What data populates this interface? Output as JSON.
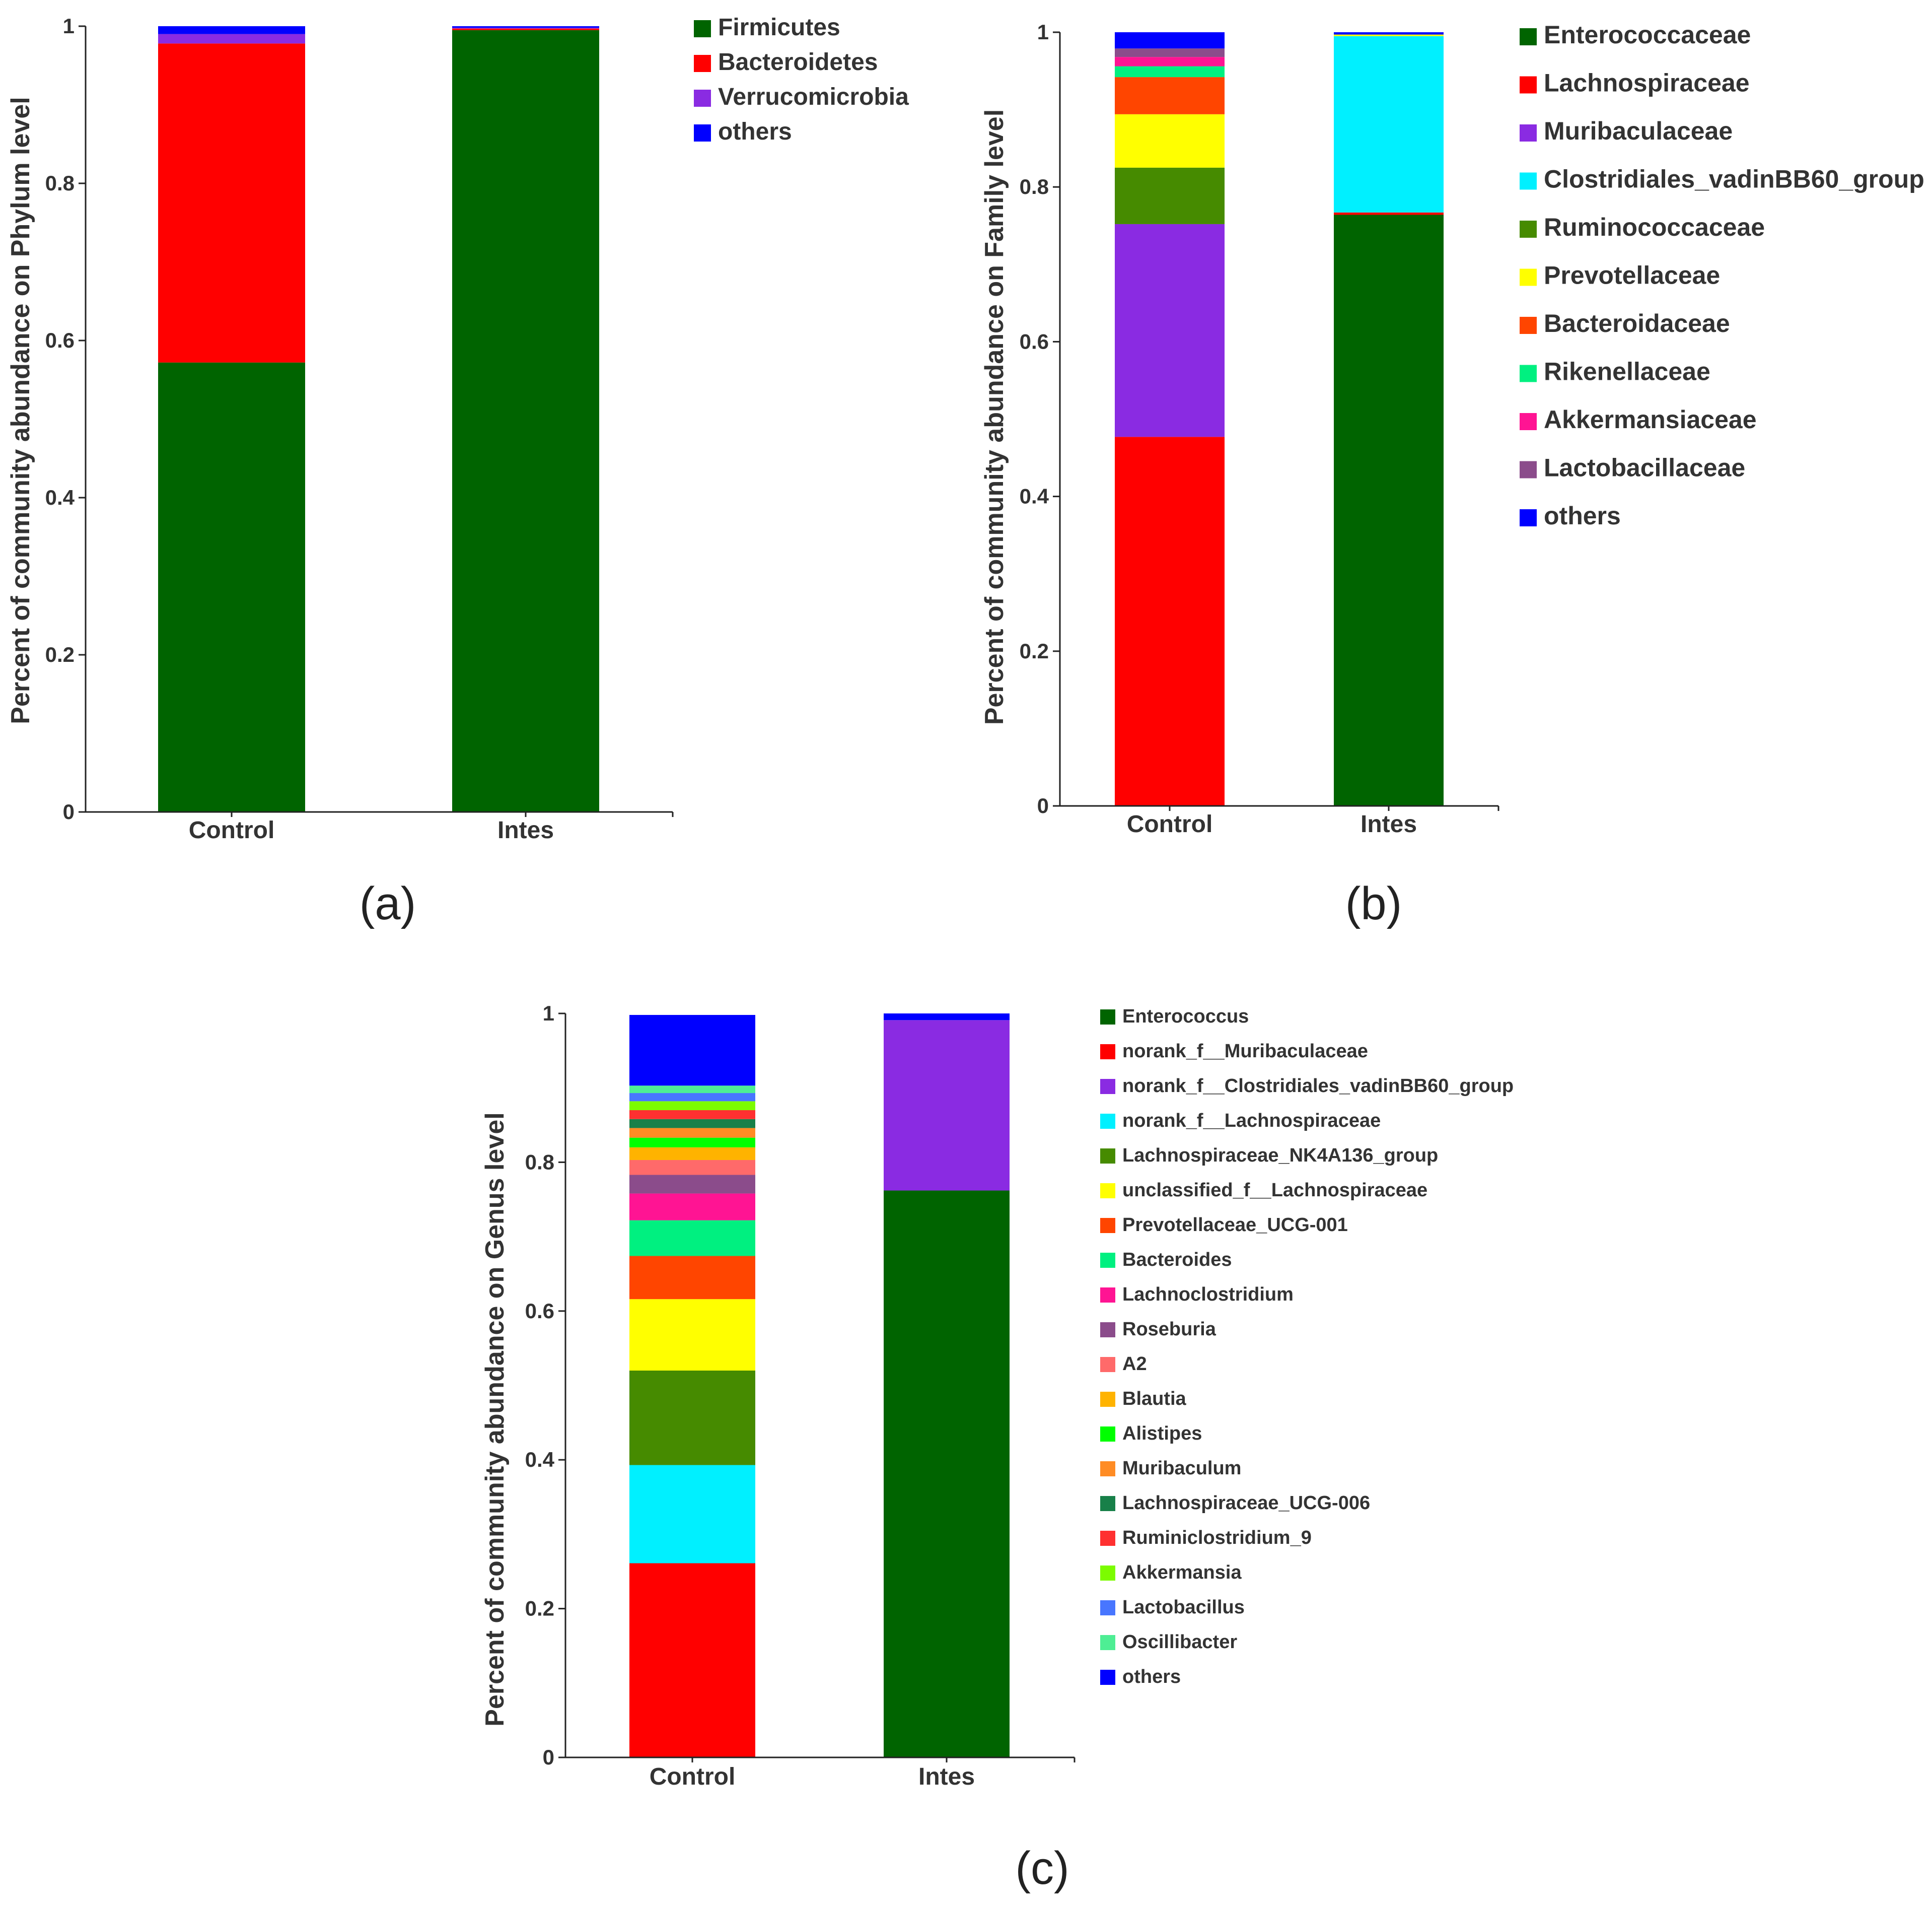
{
  "figure": {
    "panel_labels": [
      "(a)",
      "(b)",
      "(c)"
    ]
  },
  "colors": {
    "dark_green": "#006400",
    "red": "#ff0000",
    "purple": "#8a2be2",
    "blue": "#0000ff",
    "cyan": "#00f0ff",
    "olive_green": "#468b00",
    "yellow": "#ffff00",
    "orange_red": "#ff4500",
    "spring_green": "#00f080",
    "deep_pink": "#ff1493",
    "plum": "#8b4c8b",
    "salmon": "#ff6a6a",
    "orange": "#ffb300",
    "lime": "#00ff00",
    "dark_orange": "#ff8c24",
    "sea_green": "#188049",
    "crimson": "#ff3030",
    "chartreuse": "#7cfc00",
    "royal_blue": "#4876ff",
    "aquamarine": "#4eee94"
  },
  "chart_data": [
    {
      "id": "a",
      "type": "bar",
      "stacked": true,
      "title": "",
      "xlabel": "",
      "ylabel": "Percent of community abundance on Phylum level",
      "ylim": [
        0,
        1
      ],
      "yticks": [
        "0",
        "0.2",
        "0.4",
        "0.6",
        "0.8",
        "1"
      ],
      "categories": [
        "Control",
        "Intes"
      ],
      "legend_position": "right",
      "series": [
        {
          "name": "Firmicutes",
          "color": "#006400",
          "values": [
            0.572,
            0.995
          ]
        },
        {
          "name": "Bacteroidetes",
          "color": "#ff0000",
          "values": [
            0.406,
            0.002
          ]
        },
        {
          "name": "Verrucomicrobia",
          "color": "#8a2be2",
          "values": [
            0.012,
            0.001
          ]
        },
        {
          "name": "others",
          "color": "#0000ff",
          "values": [
            0.01,
            0.002
          ]
        }
      ]
    },
    {
      "id": "b",
      "type": "bar",
      "stacked": true,
      "title": "",
      "xlabel": "",
      "ylabel": "Percent of community abundance on Family level",
      "ylim": [
        0,
        1
      ],
      "yticks": [
        "0",
        "0.2",
        "0.4",
        "0.6",
        "0.8",
        "1"
      ],
      "categories": [
        "Control",
        "Intes"
      ],
      "legend_position": "right",
      "series": [
        {
          "name": "Enterococcaceae",
          "color": "#006400",
          "values": [
            0.0,
            0.764
          ]
        },
        {
          "name": "Lachnospiraceae",
          "color": "#ff0000",
          "values": [
            0.477,
            0.003
          ]
        },
        {
          "name": "Muribaculaceae",
          "color": "#8a2be2",
          "values": [
            0.275,
            0.0
          ]
        },
        {
          "name": "Clostridiales_vadinBB60_group",
          "color": "#00f0ff",
          "values": [
            0.0,
            0.228
          ]
        },
        {
          "name": "Ruminococcaceae",
          "color": "#468b00",
          "values": [
            0.073,
            0.0
          ]
        },
        {
          "name": "Prevotellaceae",
          "color": "#ffff00",
          "values": [
            0.069,
            0.002
          ]
        },
        {
          "name": "Bacteroidaceae",
          "color": "#ff4500",
          "values": [
            0.048,
            0.0
          ]
        },
        {
          "name": "Rikenellaceae",
          "color": "#00f080",
          "values": [
            0.014,
            0.0
          ]
        },
        {
          "name": "Akkermansiaceae",
          "color": "#ff1493",
          "values": [
            0.012,
            0.0
          ]
        },
        {
          "name": "Lactobacillaceae",
          "color": "#8b4c8b",
          "values": [
            0.011,
            0.0
          ]
        },
        {
          "name": "others",
          "color": "#0000ff",
          "values": [
            0.021,
            0.003
          ]
        }
      ]
    },
    {
      "id": "c",
      "type": "bar",
      "stacked": true,
      "title": "",
      "xlabel": "",
      "ylabel": "Percent of community abundance on Genus level",
      "ylim": [
        0,
        1
      ],
      "yticks": [
        "0",
        "0.2",
        "0.4",
        "0.6",
        "0.8",
        "1"
      ],
      "categories": [
        "Control",
        "Intes"
      ],
      "legend_position": "right",
      "series": [
        {
          "name": "Enterococcus",
          "color": "#006400",
          "values": [
            0.0,
            0.762
          ]
        },
        {
          "name": "norank_f__Muribaculaceae",
          "color": "#ff0000",
          "values": [
            0.261,
            0.0
          ]
        },
        {
          "name": "norank_f__Clostridiales_vadinBB60_group",
          "color": "#8a2be2",
          "values": [
            0.0,
            0.229
          ]
        },
        {
          "name": "norank_f__Lachnospiraceae",
          "color": "#00f0ff",
          "values": [
            0.132,
            0.0
          ]
        },
        {
          "name": "Lachnospiraceae_NK4A136_group",
          "color": "#468b00",
          "values": [
            0.127,
            0.0
          ]
        },
        {
          "name": "unclassified_f__Lachnospiraceae",
          "color": "#ffff00",
          "values": [
            0.096,
            0.0
          ]
        },
        {
          "name": "Prevotellaceae_UCG-001",
          "color": "#ff4500",
          "values": [
            0.058,
            0.0
          ]
        },
        {
          "name": "Bacteroides",
          "color": "#00f080",
          "values": [
            0.048,
            0.0
          ]
        },
        {
          "name": "Lachnoclostridium",
          "color": "#ff1493",
          "values": [
            0.036,
            0.0
          ]
        },
        {
          "name": "Roseburia",
          "color": "#8b4c8b",
          "values": [
            0.025,
            0.0
          ]
        },
        {
          "name": "A2",
          "color": "#ff6a6a",
          "values": [
            0.02,
            0.0
          ]
        },
        {
          "name": "Blautia",
          "color": "#ffb300",
          "values": [
            0.017,
            0.0
          ]
        },
        {
          "name": "Alistipes",
          "color": "#00ff00",
          "values": [
            0.013,
            0.0
          ]
        },
        {
          "name": "Muribaculum",
          "color": "#ff8c24",
          "values": [
            0.013,
            0.0
          ]
        },
        {
          "name": "Lachnospiraceae_UCG-006",
          "color": "#188049",
          "values": [
            0.012,
            0.0
          ]
        },
        {
          "name": "Ruminiclostridium_9",
          "color": "#ff3030",
          "values": [
            0.012,
            0.0
          ]
        },
        {
          "name": "Akkermansia",
          "color": "#7cfc00",
          "values": [
            0.012,
            0.0
          ]
        },
        {
          "name": "Lactobacillus",
          "color": "#4876ff",
          "values": [
            0.011,
            0.0
          ]
        },
        {
          "name": "Oscillibacter",
          "color": "#4eee94",
          "values": [
            0.01,
            0.0
          ]
        },
        {
          "name": "others",
          "color": "#0000ff",
          "values": [
            0.095,
            0.009
          ]
        }
      ]
    }
  ]
}
